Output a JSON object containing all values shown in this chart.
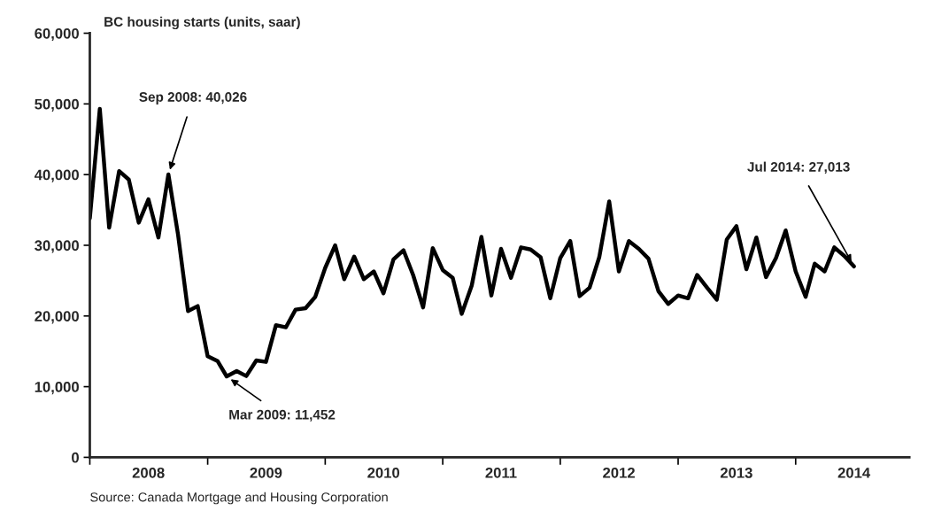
{
  "chart_data": {
    "type": "line",
    "title": "BC housing starts (units, saar)",
    "x": [
      "2008-01",
      "2008-02",
      "2008-03",
      "2008-04",
      "2008-05",
      "2008-06",
      "2008-07",
      "2008-08",
      "2008-09",
      "2008-10",
      "2008-11",
      "2008-12",
      "2009-01",
      "2009-02",
      "2009-03",
      "2009-04",
      "2009-05",
      "2009-06",
      "2009-07",
      "2009-08",
      "2009-09",
      "2009-10",
      "2009-11",
      "2009-12",
      "2010-01",
      "2010-02",
      "2010-03",
      "2010-04",
      "2010-05",
      "2010-06",
      "2010-07",
      "2010-08",
      "2010-09",
      "2010-10",
      "2010-11",
      "2010-12",
      "2011-01",
      "2011-02",
      "2011-03",
      "2011-04",
      "2011-05",
      "2011-06",
      "2011-07",
      "2011-08",
      "2011-09",
      "2011-10",
      "2011-11",
      "2011-12",
      "2012-01",
      "2012-02",
      "2012-03",
      "2012-04",
      "2012-05",
      "2012-06",
      "2012-07",
      "2012-08",
      "2012-09",
      "2012-10",
      "2012-11",
      "2012-12",
      "2013-01",
      "2013-02",
      "2013-03",
      "2013-04",
      "2013-05",
      "2013-06",
      "2013-07",
      "2013-08",
      "2013-09",
      "2013-10",
      "2013-11",
      "2013-12",
      "2014-01",
      "2014-02",
      "2014-03",
      "2014-04",
      "2014-05",
      "2014-06",
      "2014-07"
    ],
    "series": [
      {
        "color": "#000000",
        "values": [
          33800,
          49300,
          32500,
          40500,
          39300,
          33200,
          36500,
          31100,
          40026,
          31500,
          20700,
          21400,
          14300,
          13600,
          11452,
          12200,
          11500,
          13700,
          13500,
          18700,
          18400,
          20900,
          21100,
          22700,
          26800,
          30000,
          25200,
          28400,
          25200,
          26300,
          23200,
          28000,
          29300,
          25800,
          21200,
          29600,
          26500,
          25400,
          20300,
          24300,
          31200,
          22900,
          29500,
          25400,
          29700,
          29400,
          28300,
          22500,
          28200,
          30600,
          22800,
          24000,
          28300,
          36200,
          26300,
          30600,
          29500,
          28100,
          23500,
          21700,
          22900,
          22500,
          25800,
          24000,
          22300,
          30800,
          32700,
          26600,
          31100,
          25500,
          28200,
          32100,
          26300,
          22700,
          27400,
          26300,
          29700,
          28500,
          27013
        ]
      }
    ],
    "xlim": [
      "2008-01-01",
      "2014-12-20"
    ],
    "xticks": [
      {
        "value": "2008-01-01",
        "label": null
      },
      {
        "value": "2008-07-01",
        "label": "2008"
      },
      {
        "value": "2009-01-01",
        "label": null
      },
      {
        "value": "2009-07-01",
        "label": "2009"
      },
      {
        "value": "2010-01-01",
        "label": null
      },
      {
        "value": "2010-07-01",
        "label": "2010"
      },
      {
        "value": "2011-01-01",
        "label": null
      },
      {
        "value": "2011-07-01",
        "label": "2011"
      },
      {
        "value": "2012-01-01",
        "label": null
      },
      {
        "value": "2012-07-01",
        "label": "2012"
      },
      {
        "value": "2013-01-01",
        "label": null
      },
      {
        "value": "2013-07-01",
        "label": "2013"
      },
      {
        "value": "2014-01-01",
        "label": null
      },
      {
        "value": "2014-07-01",
        "label": "2014"
      }
    ],
    "ylim": [
      0,
      60000
    ],
    "yticks": [
      0,
      {
        "value": 10000,
        "label": "10,000"
      },
      {
        "value": 20000,
        "label": "20,000"
      },
      {
        "value": 30000,
        "label": "30,000"
      },
      {
        "value": 40000,
        "label": "40,000"
      },
      {
        "value": 50000,
        "label": "50,000"
      },
      {
        "value": 60000,
        "label": "60,000"
      }
    ],
    "grid": false,
    "legend": false,
    "marker": "none",
    "line_style": "solid",
    "annotations": [
      {
        "text": "Sep 2008: 40,026",
        "x": "2008-09",
        "y": 40026
      },
      {
        "text": "Mar 2009: 11,452",
        "x": "2009-03",
        "y": 11452
      },
      {
        "text": "Jul 2014: 27,013",
        "x": "2014-07",
        "y": 27013
      },
      "Source: Canada Mortgage and Housing Corporation"
    ]
  }
}
